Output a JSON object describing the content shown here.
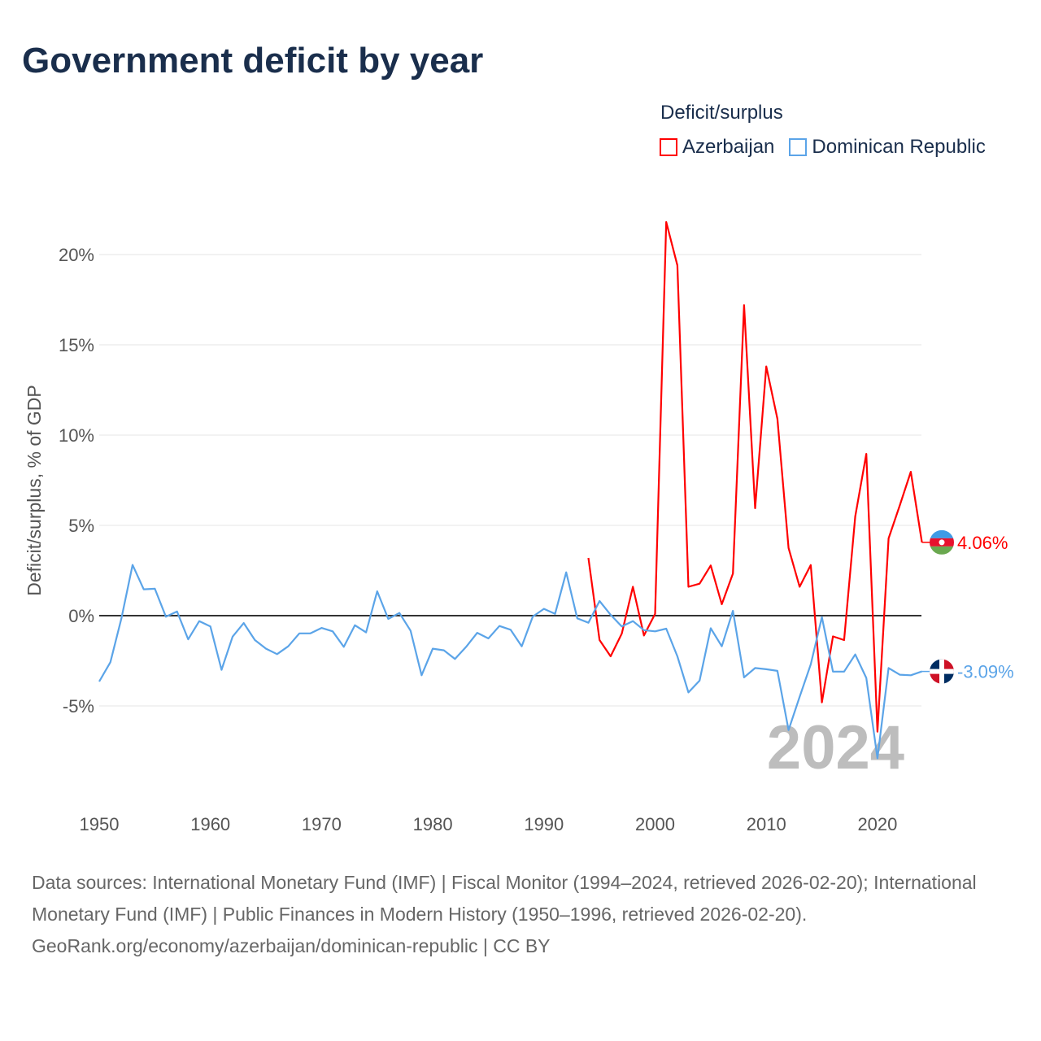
{
  "chart_data": {
    "type": "line",
    "title": "Government deficit by year",
    "ylabel": "Deficit/surplus, % of GDP",
    "xlabel": "",
    "legend_title": "Deficit/surplus",
    "legend_position": "top-right",
    "xlim": [
      1950,
      2024
    ],
    "ylim": [
      -10,
      22.5
    ],
    "x_ticks": [
      1950,
      1960,
      1970,
      1980,
      1990,
      2000,
      2010,
      2020
    ],
    "x_tick_labels": [
      "1950",
      "1960",
      "1970",
      "1980",
      "1990",
      "2000",
      "2010",
      "2020"
    ],
    "y_ticks": [
      -5,
      0,
      5,
      10,
      15,
      20
    ],
    "y_tick_labels": [
      "-5%",
      "0%",
      "5%",
      "10%",
      "15%",
      "20%"
    ],
    "year_watermark": "2024",
    "series": [
      {
        "name": "Azerbaijan",
        "color": "#ff0000",
        "end_label": "4.06%",
        "start_year": 1994,
        "values": [
          3.2,
          -1.35,
          -2.25,
          -1.0,
          1.6,
          -1.1,
          0.1,
          21.8,
          19.4,
          1.6,
          1.77,
          2.78,
          0.63,
          2.33,
          17.2,
          5.95,
          13.8,
          10.9,
          3.75,
          1.6,
          2.8,
          -4.8,
          -1.15,
          -1.35,
          5.5,
          8.96,
          -6.43,
          4.28,
          6.1,
          7.97,
          4.06
        ]
      },
      {
        "name": "Dominican Republic",
        "color": "#5ba4e8",
        "end_label": "-3.09%",
        "start_year": 1950,
        "values": [
          -3.65,
          -2.58,
          -0.15,
          2.81,
          1.46,
          1.49,
          -0.06,
          0.23,
          -1.31,
          -0.3,
          -0.6,
          -3.0,
          -1.16,
          -0.41,
          -1.35,
          -1.83,
          -2.13,
          -1.7,
          -0.98,
          -0.98,
          -0.68,
          -0.87,
          -1.73,
          -0.53,
          -0.93,
          1.35,
          -0.18,
          0.15,
          -0.83,
          -3.3,
          -1.83,
          -1.92,
          -2.4,
          -1.73,
          -0.95,
          -1.26,
          -0.57,
          -0.78,
          -1.7,
          -0.05,
          0.38,
          0.1,
          2.4,
          -0.15,
          -0.39,
          0.81,
          0.05,
          -0.6,
          -0.3,
          -0.8,
          -0.87,
          -0.72,
          -2.25,
          -4.25,
          -3.6,
          -0.7,
          -1.7,
          0.27,
          -3.42,
          -2.9,
          -2.97,
          -3.06,
          -6.34,
          -4.5,
          -2.7,
          -0.08,
          -3.1,
          -3.1,
          -2.15,
          -3.45,
          -7.9,
          -2.9,
          -3.27,
          -3.3,
          -3.09
        ]
      }
    ]
  },
  "footer": {
    "sources": "Data sources: International Monetary Fund (IMF) | Fiscal Monitor (1994–2024, retrieved 2026-02-20); International Monetary Fund (IMF) | Public Finances in Modern History (1950–1996, retrieved 2026-02-20).",
    "credit": "GeoRank.org/economy/azerbaijan/dominican-republic | CC BY"
  }
}
